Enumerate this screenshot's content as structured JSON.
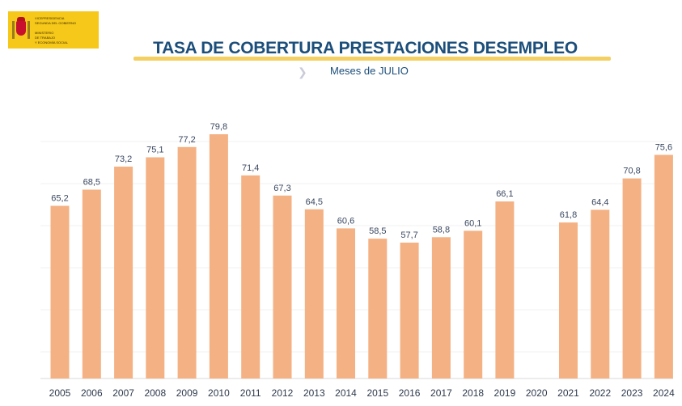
{
  "logo": {
    "lines": [
      "Vicepresidencia",
      "Segunda del Gobierno",
      "",
      "Ministerio",
      "de Trabajo",
      "y Economía Social"
    ]
  },
  "header": {
    "title": "TASA DE COBERTURA PRESTACIONES DESEMPLEO",
    "subtitle": "Meses de JULIO"
  },
  "colors": {
    "bar": "#f4b183",
    "title": "#1b4e7a",
    "underline": "#f3d061",
    "logo_bg": "#f6c81a"
  },
  "chart_data": {
    "type": "bar",
    "title": "TASA DE COBERTURA PRESTACIONES DESEMPLEO",
    "subtitle": "Meses de JULIO",
    "categories": [
      "2005",
      "2006",
      "2007",
      "2008",
      "2009",
      "2010",
      "2011",
      "2012",
      "2013",
      "2014",
      "2015",
      "2016",
      "2017",
      "2018",
      "2019",
      "2020",
      "2021",
      "2022",
      "2023",
      "2024"
    ],
    "values": [
      65.2,
      68.5,
      73.2,
      75.1,
      77.2,
      79.8,
      71.4,
      67.3,
      64.5,
      60.6,
      58.5,
      57.7,
      58.8,
      60.1,
      66.1,
      null,
      61.8,
      64.4,
      70.8,
      75.6
    ],
    "value_labels": [
      "65,2",
      "68,5",
      "73,2",
      "75,1",
      "77,2",
      "79,8",
      "71,4",
      "67,3",
      "64,5",
      "60,6",
      "58,5",
      "57,7",
      "58,8",
      "60,1",
      "66,1",
      "",
      "61,8",
      "64,4",
      "70,8",
      "75,6"
    ],
    "xlabel": "",
    "ylabel": "",
    "grid": true,
    "legend": "none"
  }
}
